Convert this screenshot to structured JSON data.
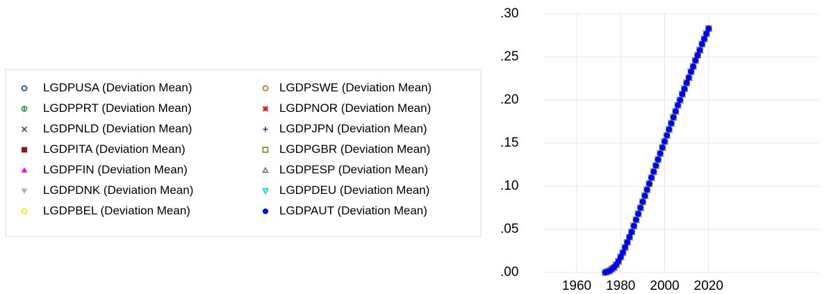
{
  "chart_data": {
    "type": "scatter",
    "x": [
      1973,
      1974,
      1975,
      1976,
      1977,
      1978,
      1979,
      1980,
      1981,
      1982,
      1983,
      1984,
      1985,
      1986,
      1987,
      1988,
      1989,
      1990,
      1991,
      1992,
      1993,
      1994,
      1995,
      1996,
      1997,
      1998,
      1999,
      2000,
      2001,
      2002,
      2003,
      2004,
      2005,
      2006,
      2007,
      2008,
      2009,
      2010,
      2011,
      2012,
      2013,
      2014,
      2015,
      2016,
      2017,
      2018,
      2019,
      2020
    ],
    "xlim": [
      1945,
      2070
    ],
    "xticks": [
      1960,
      1980,
      2000,
      2020
    ],
    "ylim": [
      0,
      0.3
    ],
    "yticks": [
      {
        "value": 0,
        "label": ".00"
      },
      {
        "value": 0.05,
        "label": ".05"
      },
      {
        "value": 0.1,
        "label": ".10"
      },
      {
        "value": 0.15,
        "label": ".15"
      },
      {
        "value": 0.2,
        "label": ".20"
      },
      {
        "value": 0.25,
        "label": ".25"
      },
      {
        "value": 0.3,
        "label": ".30"
      }
    ],
    "grid": true,
    "legend": "left",
    "series": [
      {
        "name": "LGDPUSA (Deviation Mean)",
        "color": "#1f4e99",
        "marker": "circle-open",
        "values": [
          0,
          0.001,
          0.002,
          0.004,
          0.006,
          0.009,
          0.013,
          0.018,
          0.023,
          0.029,
          0.035,
          0.041,
          0.047,
          0.054,
          0.061,
          0.068,
          0.075,
          0.082,
          0.089,
          0.096,
          0.103,
          0.11,
          0.117,
          0.124,
          0.131,
          0.138,
          0.145,
          0.152,
          0.159,
          0.166,
          0.173,
          0.18,
          0.187,
          0.194,
          0.2,
          0.207,
          0.213,
          0.22,
          0.226,
          0.233,
          0.239,
          0.246,
          0.252,
          0.258,
          0.265,
          0.271,
          0.277,
          0.283
        ]
      },
      {
        "name": "LGDPSWE (Deviation Mean)",
        "color": "#e07020",
        "marker": "circle-open",
        "values": [
          0,
          0.001,
          0.002,
          0.004,
          0.006,
          0.009,
          0.013,
          0.018,
          0.023,
          0.029,
          0.035,
          0.041,
          0.047,
          0.054,
          0.061,
          0.068,
          0.075,
          0.082,
          0.089,
          0.096,
          0.103,
          0.11,
          0.117,
          0.124,
          0.131,
          0.138,
          0.145,
          0.152,
          0.159,
          0.166,
          0.173,
          0.18,
          0.187,
          0.194,
          0.2,
          0.207,
          0.213,
          0.22,
          0.226,
          0.233,
          0.239,
          0.246,
          0.252,
          0.258,
          0.265,
          0.271,
          0.277,
          0.283
        ]
      },
      {
        "name": "LGDPPRT (Deviation Mean)",
        "color": "#2e9e4e",
        "marker": "circle-cross",
        "values": [
          0,
          0.001,
          0.002,
          0.004,
          0.006,
          0.009,
          0.013,
          0.018,
          0.023,
          0.029,
          0.035,
          0.041,
          0.047,
          0.054,
          0.061,
          0.068,
          0.075,
          0.082,
          0.089,
          0.096,
          0.103,
          0.11,
          0.117,
          0.124,
          0.131,
          0.138,
          0.145,
          0.152,
          0.159,
          0.166,
          0.173,
          0.18,
          0.187,
          0.194,
          0.2,
          0.207,
          0.213,
          0.22,
          0.226,
          0.233,
          0.239,
          0.246,
          0.252,
          0.258,
          0.265,
          0.271,
          0.277,
          0.283
        ]
      },
      {
        "name": "LGDPNOR (Deviation Mean)",
        "color": "#e02020",
        "marker": "asterisk",
        "values": [
          0,
          0.001,
          0.002,
          0.004,
          0.006,
          0.009,
          0.013,
          0.018,
          0.023,
          0.029,
          0.035,
          0.041,
          0.047,
          0.054,
          0.061,
          0.068,
          0.075,
          0.082,
          0.089,
          0.096,
          0.103,
          0.11,
          0.117,
          0.124,
          0.131,
          0.138,
          0.145,
          0.152,
          0.159,
          0.166,
          0.173,
          0.18,
          0.187,
          0.194,
          0.2,
          0.207,
          0.213,
          0.22,
          0.226,
          0.233,
          0.239,
          0.246,
          0.252,
          0.258,
          0.265,
          0.271,
          0.277,
          0.283
        ]
      },
      {
        "name": "LGDPNLD (Deviation Mean)",
        "color": "#505050",
        "marker": "x",
        "values": [
          0,
          0.001,
          0.002,
          0.004,
          0.006,
          0.009,
          0.013,
          0.018,
          0.023,
          0.029,
          0.035,
          0.041,
          0.047,
          0.054,
          0.061,
          0.068,
          0.075,
          0.082,
          0.089,
          0.096,
          0.103,
          0.11,
          0.117,
          0.124,
          0.131,
          0.138,
          0.145,
          0.152,
          0.159,
          0.166,
          0.173,
          0.18,
          0.187,
          0.194,
          0.2,
          0.207,
          0.213,
          0.22,
          0.226,
          0.233,
          0.239,
          0.246,
          0.252,
          0.258,
          0.265,
          0.271,
          0.277,
          0.283
        ]
      },
      {
        "name": "LGDPJPN (Deviation Mean)",
        "color": "#6a3d9a",
        "marker": "plus",
        "values": [
          0,
          0.001,
          0.002,
          0.004,
          0.006,
          0.009,
          0.013,
          0.018,
          0.023,
          0.029,
          0.035,
          0.041,
          0.047,
          0.054,
          0.061,
          0.068,
          0.075,
          0.082,
          0.089,
          0.096,
          0.103,
          0.11,
          0.117,
          0.124,
          0.131,
          0.138,
          0.145,
          0.152,
          0.159,
          0.166,
          0.173,
          0.18,
          0.187,
          0.194,
          0.2,
          0.207,
          0.213,
          0.22,
          0.226,
          0.233,
          0.239,
          0.246,
          0.252,
          0.258,
          0.265,
          0.271,
          0.277,
          0.283
        ]
      },
      {
        "name": "LGDPITA (Deviation Mean)",
        "color": "#8b1a1a",
        "marker": "square",
        "values": [
          0,
          0.001,
          0.002,
          0.004,
          0.006,
          0.009,
          0.013,
          0.018,
          0.023,
          0.029,
          0.035,
          0.041,
          0.047,
          0.054,
          0.061,
          0.068,
          0.075,
          0.082,
          0.089,
          0.096,
          0.103,
          0.11,
          0.117,
          0.124,
          0.131,
          0.138,
          0.145,
          0.152,
          0.159,
          0.166,
          0.173,
          0.18,
          0.187,
          0.194,
          0.2,
          0.207,
          0.213,
          0.22,
          0.226,
          0.233,
          0.239,
          0.246,
          0.252,
          0.258,
          0.265,
          0.271,
          0.277,
          0.283
        ]
      },
      {
        "name": "LGDPGBR (Deviation Mean)",
        "color": "#9a8a30",
        "marker": "square-open",
        "values": [
          0,
          0.001,
          0.002,
          0.004,
          0.006,
          0.009,
          0.013,
          0.018,
          0.023,
          0.029,
          0.035,
          0.041,
          0.047,
          0.054,
          0.061,
          0.068,
          0.075,
          0.082,
          0.089,
          0.096,
          0.103,
          0.11,
          0.117,
          0.124,
          0.131,
          0.138,
          0.145,
          0.152,
          0.159,
          0.166,
          0.173,
          0.18,
          0.187,
          0.194,
          0.2,
          0.207,
          0.213,
          0.22,
          0.226,
          0.233,
          0.239,
          0.246,
          0.252,
          0.258,
          0.265,
          0.271,
          0.277,
          0.283
        ]
      },
      {
        "name": "LGDPFIN (Deviation Mean)",
        "color": "#ff00ff",
        "marker": "triangle",
        "values": [
          0,
          0.001,
          0.002,
          0.004,
          0.006,
          0.009,
          0.013,
          0.018,
          0.023,
          0.029,
          0.035,
          0.041,
          0.047,
          0.054,
          0.061,
          0.068,
          0.075,
          0.082,
          0.089,
          0.096,
          0.103,
          0.11,
          0.117,
          0.124,
          0.131,
          0.138,
          0.145,
          0.152,
          0.159,
          0.166,
          0.173,
          0.18,
          0.187,
          0.194,
          0.2,
          0.207,
          0.213,
          0.22,
          0.226,
          0.233,
          0.239,
          0.246,
          0.252,
          0.258,
          0.265,
          0.271,
          0.277,
          0.283
        ]
      },
      {
        "name": "LGDPESP (Deviation Mean)",
        "color": "#808080",
        "marker": "triangle-open",
        "values": [
          0,
          0.001,
          0.002,
          0.004,
          0.006,
          0.009,
          0.013,
          0.018,
          0.023,
          0.029,
          0.035,
          0.041,
          0.047,
          0.054,
          0.061,
          0.068,
          0.075,
          0.082,
          0.089,
          0.096,
          0.103,
          0.11,
          0.117,
          0.124,
          0.131,
          0.138,
          0.145,
          0.152,
          0.159,
          0.166,
          0.173,
          0.18,
          0.187,
          0.194,
          0.2,
          0.207,
          0.213,
          0.22,
          0.226,
          0.233,
          0.239,
          0.246,
          0.252,
          0.258,
          0.265,
          0.271,
          0.277,
          0.283
        ]
      },
      {
        "name": "LGDPDNK (Deviation Mean)",
        "color": "#b0b0b0",
        "marker": "triangle-down",
        "values": [
          0,
          0.001,
          0.002,
          0.004,
          0.006,
          0.009,
          0.013,
          0.018,
          0.023,
          0.029,
          0.035,
          0.041,
          0.047,
          0.054,
          0.061,
          0.068,
          0.075,
          0.082,
          0.089,
          0.096,
          0.103,
          0.11,
          0.117,
          0.124,
          0.131,
          0.138,
          0.145,
          0.152,
          0.159,
          0.166,
          0.173,
          0.18,
          0.187,
          0.194,
          0.2,
          0.207,
          0.213,
          0.22,
          0.226,
          0.233,
          0.239,
          0.246,
          0.252,
          0.258,
          0.265,
          0.271,
          0.277,
          0.283
        ]
      },
      {
        "name": "LGDPDEU (Deviation Mean)",
        "color": "#00e0e0",
        "marker": "triangle-down-open",
        "values": [
          0,
          0.001,
          0.002,
          0.004,
          0.006,
          0.009,
          0.013,
          0.018,
          0.023,
          0.029,
          0.035,
          0.041,
          0.047,
          0.054,
          0.061,
          0.068,
          0.075,
          0.082,
          0.089,
          0.096,
          0.103,
          0.11,
          0.117,
          0.124,
          0.131,
          0.138,
          0.145,
          0.152,
          0.159,
          0.166,
          0.173,
          0.18,
          0.187,
          0.194,
          0.2,
          0.207,
          0.213,
          0.22,
          0.226,
          0.233,
          0.239,
          0.246,
          0.252,
          0.258,
          0.265,
          0.271,
          0.277,
          0.283
        ]
      },
      {
        "name": "LGDPBEL (Deviation Mean)",
        "color": "#f0f000",
        "marker": "circle-open",
        "values": [
          0,
          0.001,
          0.002,
          0.004,
          0.006,
          0.009,
          0.013,
          0.018,
          0.023,
          0.029,
          0.035,
          0.041,
          0.047,
          0.054,
          0.061,
          0.068,
          0.075,
          0.082,
          0.089,
          0.096,
          0.103,
          0.11,
          0.117,
          0.124,
          0.131,
          0.138,
          0.145,
          0.152,
          0.159,
          0.166,
          0.173,
          0.18,
          0.187,
          0.194,
          0.2,
          0.207,
          0.213,
          0.22,
          0.226,
          0.233,
          0.239,
          0.246,
          0.252,
          0.258,
          0.265,
          0.271,
          0.277,
          0.283
        ]
      },
      {
        "name": "LGDPAUT (Deviation Mean)",
        "color": "#0000ff",
        "marker": "circle",
        "values": [
          0,
          0.001,
          0.002,
          0.004,
          0.006,
          0.009,
          0.013,
          0.018,
          0.023,
          0.029,
          0.035,
          0.041,
          0.047,
          0.054,
          0.061,
          0.068,
          0.075,
          0.082,
          0.089,
          0.096,
          0.103,
          0.11,
          0.117,
          0.124,
          0.131,
          0.138,
          0.145,
          0.152,
          0.159,
          0.166,
          0.173,
          0.18,
          0.187,
          0.194,
          0.2,
          0.207,
          0.213,
          0.22,
          0.226,
          0.233,
          0.239,
          0.246,
          0.252,
          0.258,
          0.265,
          0.271,
          0.277,
          0.283
        ]
      }
    ]
  }
}
